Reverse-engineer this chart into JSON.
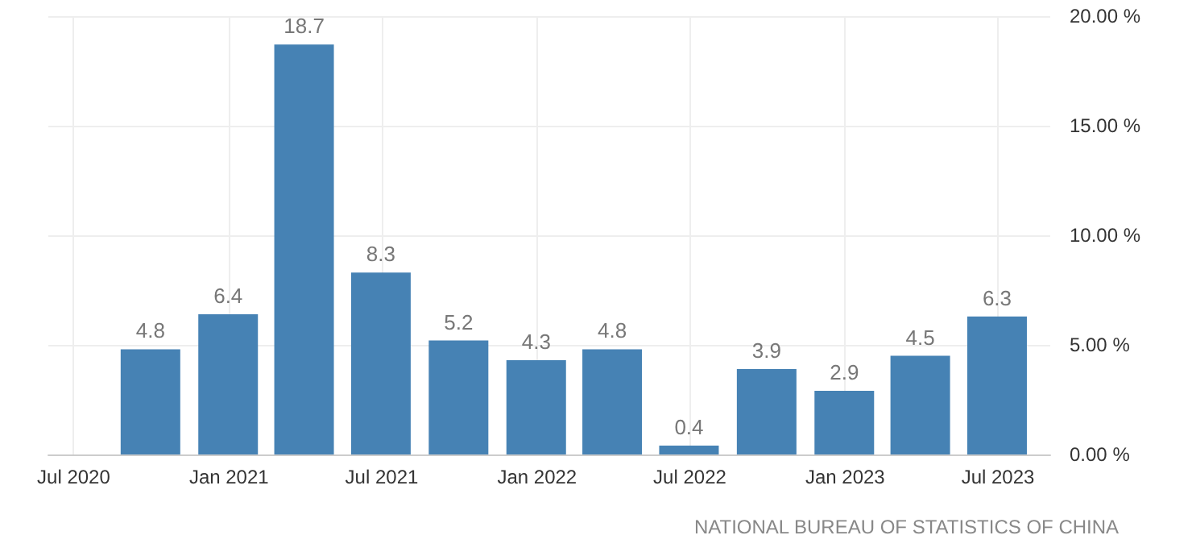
{
  "chart_data": {
    "type": "bar",
    "x": [
      "2020-09-30",
      "2020-12-31",
      "2021-03-31",
      "2021-06-30",
      "2021-09-30",
      "2021-12-31",
      "2022-03-31",
      "2022-06-30",
      "2022-09-30",
      "2022-12-31",
      "2023-03-31",
      "2023-06-30"
    ],
    "values": [
      4.8,
      6.4,
      18.7,
      8.3,
      5.2,
      4.3,
      4.8,
      0.4,
      3.9,
      2.9,
      4.5,
      6.3
    ],
    "color": "#4682b4",
    "data_labels": true,
    "xlim": [
      "2020-06-01",
      "2023-09-01"
    ],
    "xticks": [
      {
        "value": "2020-07-01",
        "label": "Jul 2020"
      },
      {
        "value": "2021-01-01",
        "label": "Jan 2021"
      },
      {
        "value": "2021-07-01",
        "label": "Jul 2021"
      },
      {
        "value": "2022-01-01",
        "label": "Jan 2022"
      },
      {
        "value": "2022-07-01",
        "label": "Jul 2022"
      },
      {
        "value": "2023-01-01",
        "label": "Jan 2023"
      },
      {
        "value": "2023-07-01",
        "label": "Jul 2023"
      }
    ],
    "ylim": [
      0,
      20
    ],
    "yticks": [
      {
        "value": 0,
        "label": "0.00 %"
      },
      {
        "value": 5,
        "label": "5.00 %"
      },
      {
        "value": 10,
        "label": "10.00 %"
      },
      {
        "value": 15,
        "label": "15.00 %"
      },
      {
        "value": 20,
        "label": "20.00 %"
      }
    ],
    "grid": true,
    "annotations": [
      "NATIONAL BUREAU OF STATISTICS OF CHINA"
    ]
  }
}
